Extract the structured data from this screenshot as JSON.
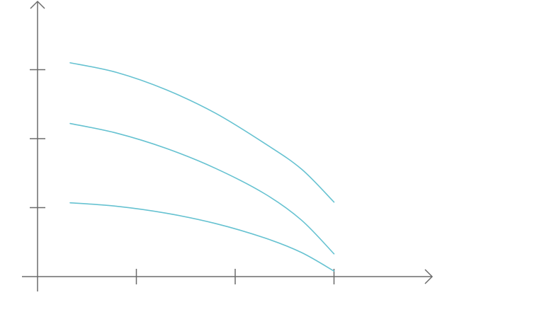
{
  "chart_data": {
    "type": "line",
    "title": "",
    "xlabel": "",
    "ylabel": "",
    "x_ticks": [
      1,
      2,
      3
    ],
    "y_ticks": [
      1,
      2,
      3
    ],
    "xlim": [
      0,
      4
    ],
    "ylim": [
      0,
      4
    ],
    "grid": false,
    "legend": "none",
    "colors": {
      "axis": "#6b6b6b",
      "series": "#66c2d1"
    },
    "series": [
      {
        "x": [
          0.33,
          0.8,
          1.3,
          1.8,
          2.3,
          2.67,
          3.0
        ],
        "values": [
          3.1,
          2.96,
          2.71,
          2.37,
          1.93,
          1.56,
          1.08
        ]
      },
      {
        "x": [
          0.33,
          0.8,
          1.3,
          1.8,
          2.3,
          2.67,
          3.0
        ],
        "values": [
          2.22,
          2.08,
          1.86,
          1.57,
          1.2,
          0.82,
          0.33
        ]
      },
      {
        "x": [
          0.33,
          0.8,
          1.3,
          1.8,
          2.3,
          2.67,
          3.0
        ],
        "values": [
          1.07,
          1.02,
          0.92,
          0.77,
          0.56,
          0.35,
          0.08
        ]
      }
    ]
  }
}
